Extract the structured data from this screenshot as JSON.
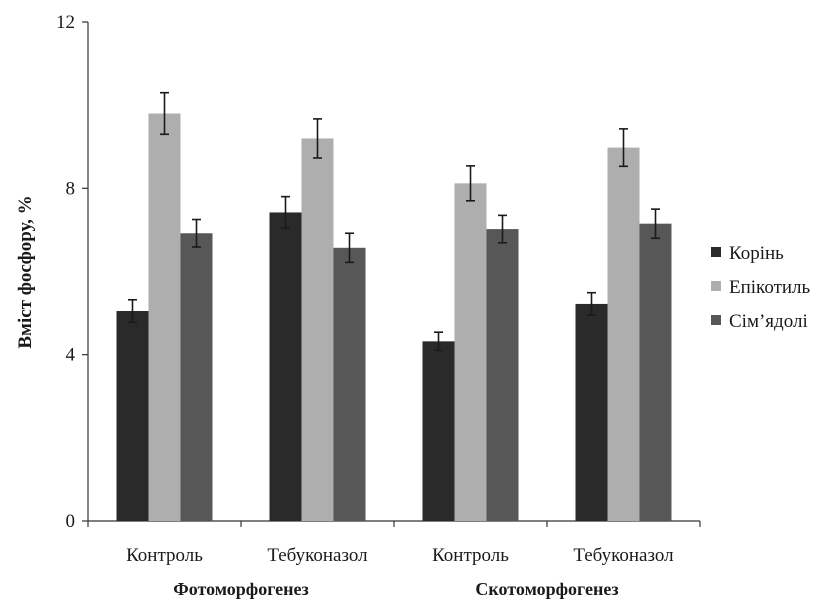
{
  "chart_data": {
    "type": "bar",
    "title": "",
    "xlabel": "",
    "ylabel": "Вміст фосфору, %",
    "ylim": [
      0,
      12
    ],
    "yticks": [
      0,
      4,
      8,
      12
    ],
    "grid": false,
    "legend_position": "right",
    "categories": [
      "Контроль",
      "Тебуконазол",
      "Контроль",
      "Тебуконазол"
    ],
    "groups": [
      {
        "label": "Фотоморфогенез",
        "categories": [
          0,
          1
        ]
      },
      {
        "label": "Скотоморфогенез",
        "categories": [
          2,
          3
        ]
      }
    ],
    "series": [
      {
        "name": "Корінь",
        "color": "#2a2a2a",
        "values": [
          5.05,
          7.42,
          4.32,
          5.22
        ],
        "errors": [
          0.27,
          0.38,
          0.22,
          0.27
        ]
      },
      {
        "name": "Епікотиль",
        "color": "#aeaeae",
        "values": [
          9.8,
          9.2,
          8.12,
          8.98
        ],
        "errors": [
          0.5,
          0.47,
          0.42,
          0.45
        ]
      },
      {
        "name": "Сім’ядолі",
        "color": "#575757",
        "values": [
          6.92,
          6.57,
          7.02,
          7.15
        ],
        "errors": [
          0.33,
          0.35,
          0.33,
          0.35
        ]
      }
    ]
  }
}
